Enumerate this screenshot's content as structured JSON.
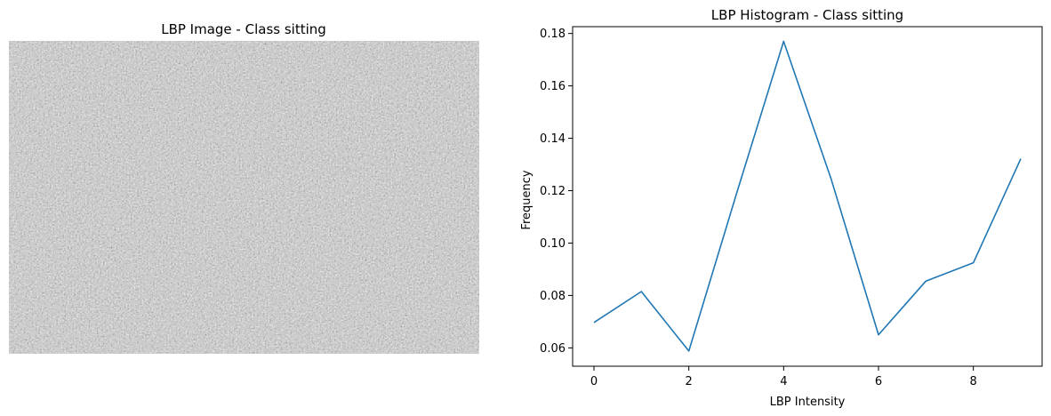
{
  "left_panel": {
    "title": "LBP Image - Class sitting"
  },
  "chart_data": {
    "type": "line",
    "title": "LBP Histogram - Class sitting",
    "xlabel": "LBP Intensity",
    "ylabel": "Frequency",
    "x": [
      0,
      1,
      2,
      3,
      4,
      5,
      6,
      7,
      8,
      9
    ],
    "series": [
      {
        "values": [
          0.0697,
          0.0815,
          0.0588,
          0.1185,
          0.177,
          0.1245,
          0.065,
          0.0855,
          0.0925,
          0.1322
        ]
      }
    ],
    "xlim": [
      -0.45,
      9.45
    ],
    "ylim": [
      0.053,
      0.1826
    ],
    "xticks": [
      0,
      2,
      4,
      6,
      8
    ],
    "yticks": [
      0.06,
      0.08,
      0.1,
      0.12,
      0.14,
      0.16,
      0.18
    ],
    "ytick_labels": [
      "0.06",
      "0.08",
      "0.10",
      "0.12",
      "0.14",
      "0.16",
      "0.18"
    ],
    "line_color": "#1f77b4",
    "grid": false,
    "legend": "none"
  }
}
